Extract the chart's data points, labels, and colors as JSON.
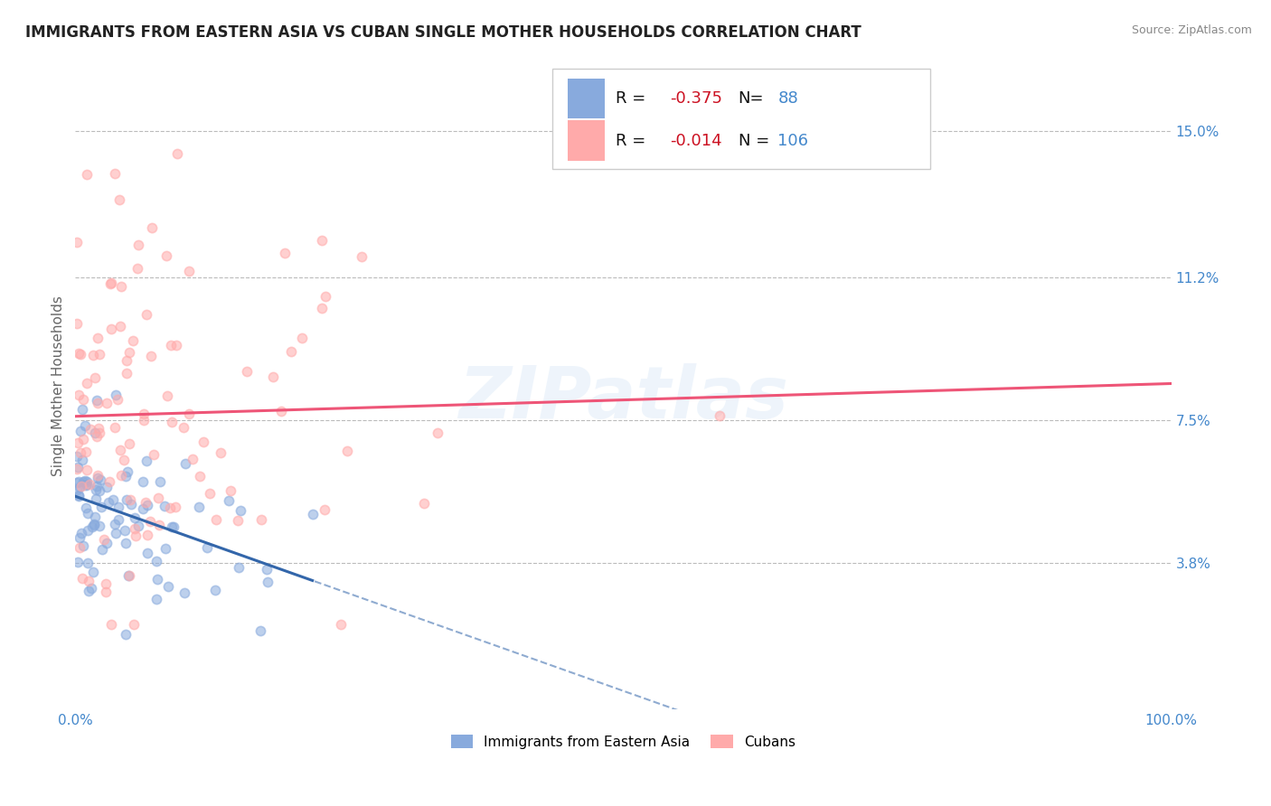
{
  "title": "IMMIGRANTS FROM EASTERN ASIA VS CUBAN SINGLE MOTHER HOUSEHOLDS CORRELATION CHART",
  "source": "Source: ZipAtlas.com",
  "ylabel": "Single Mother Households",
  "ytick_values": [
    0.038,
    0.075,
    0.112,
    0.15
  ],
  "xlim": [
    0.0,
    1.0
  ],
  "ylim": [
    0.0,
    0.168
  ],
  "blue_R": -0.375,
  "blue_N": 88,
  "pink_R": -0.014,
  "pink_N": 106,
  "blue_color": "#88AADD",
  "pink_color": "#FFAAAA",
  "blue_line_color": "#3366AA",
  "pink_line_color": "#EE5577",
  "watermark": "ZIPatlas",
  "legend_label_blue": "Immigrants from Eastern Asia",
  "legend_label_pink": "Cubans",
  "background_color": "#FFFFFF",
  "grid_color": "#BBBBBB",
  "title_color": "#222222",
  "axis_label_color": "#4488CC",
  "r_text_color": "#CC1122",
  "n_text_color": "#4488CC"
}
